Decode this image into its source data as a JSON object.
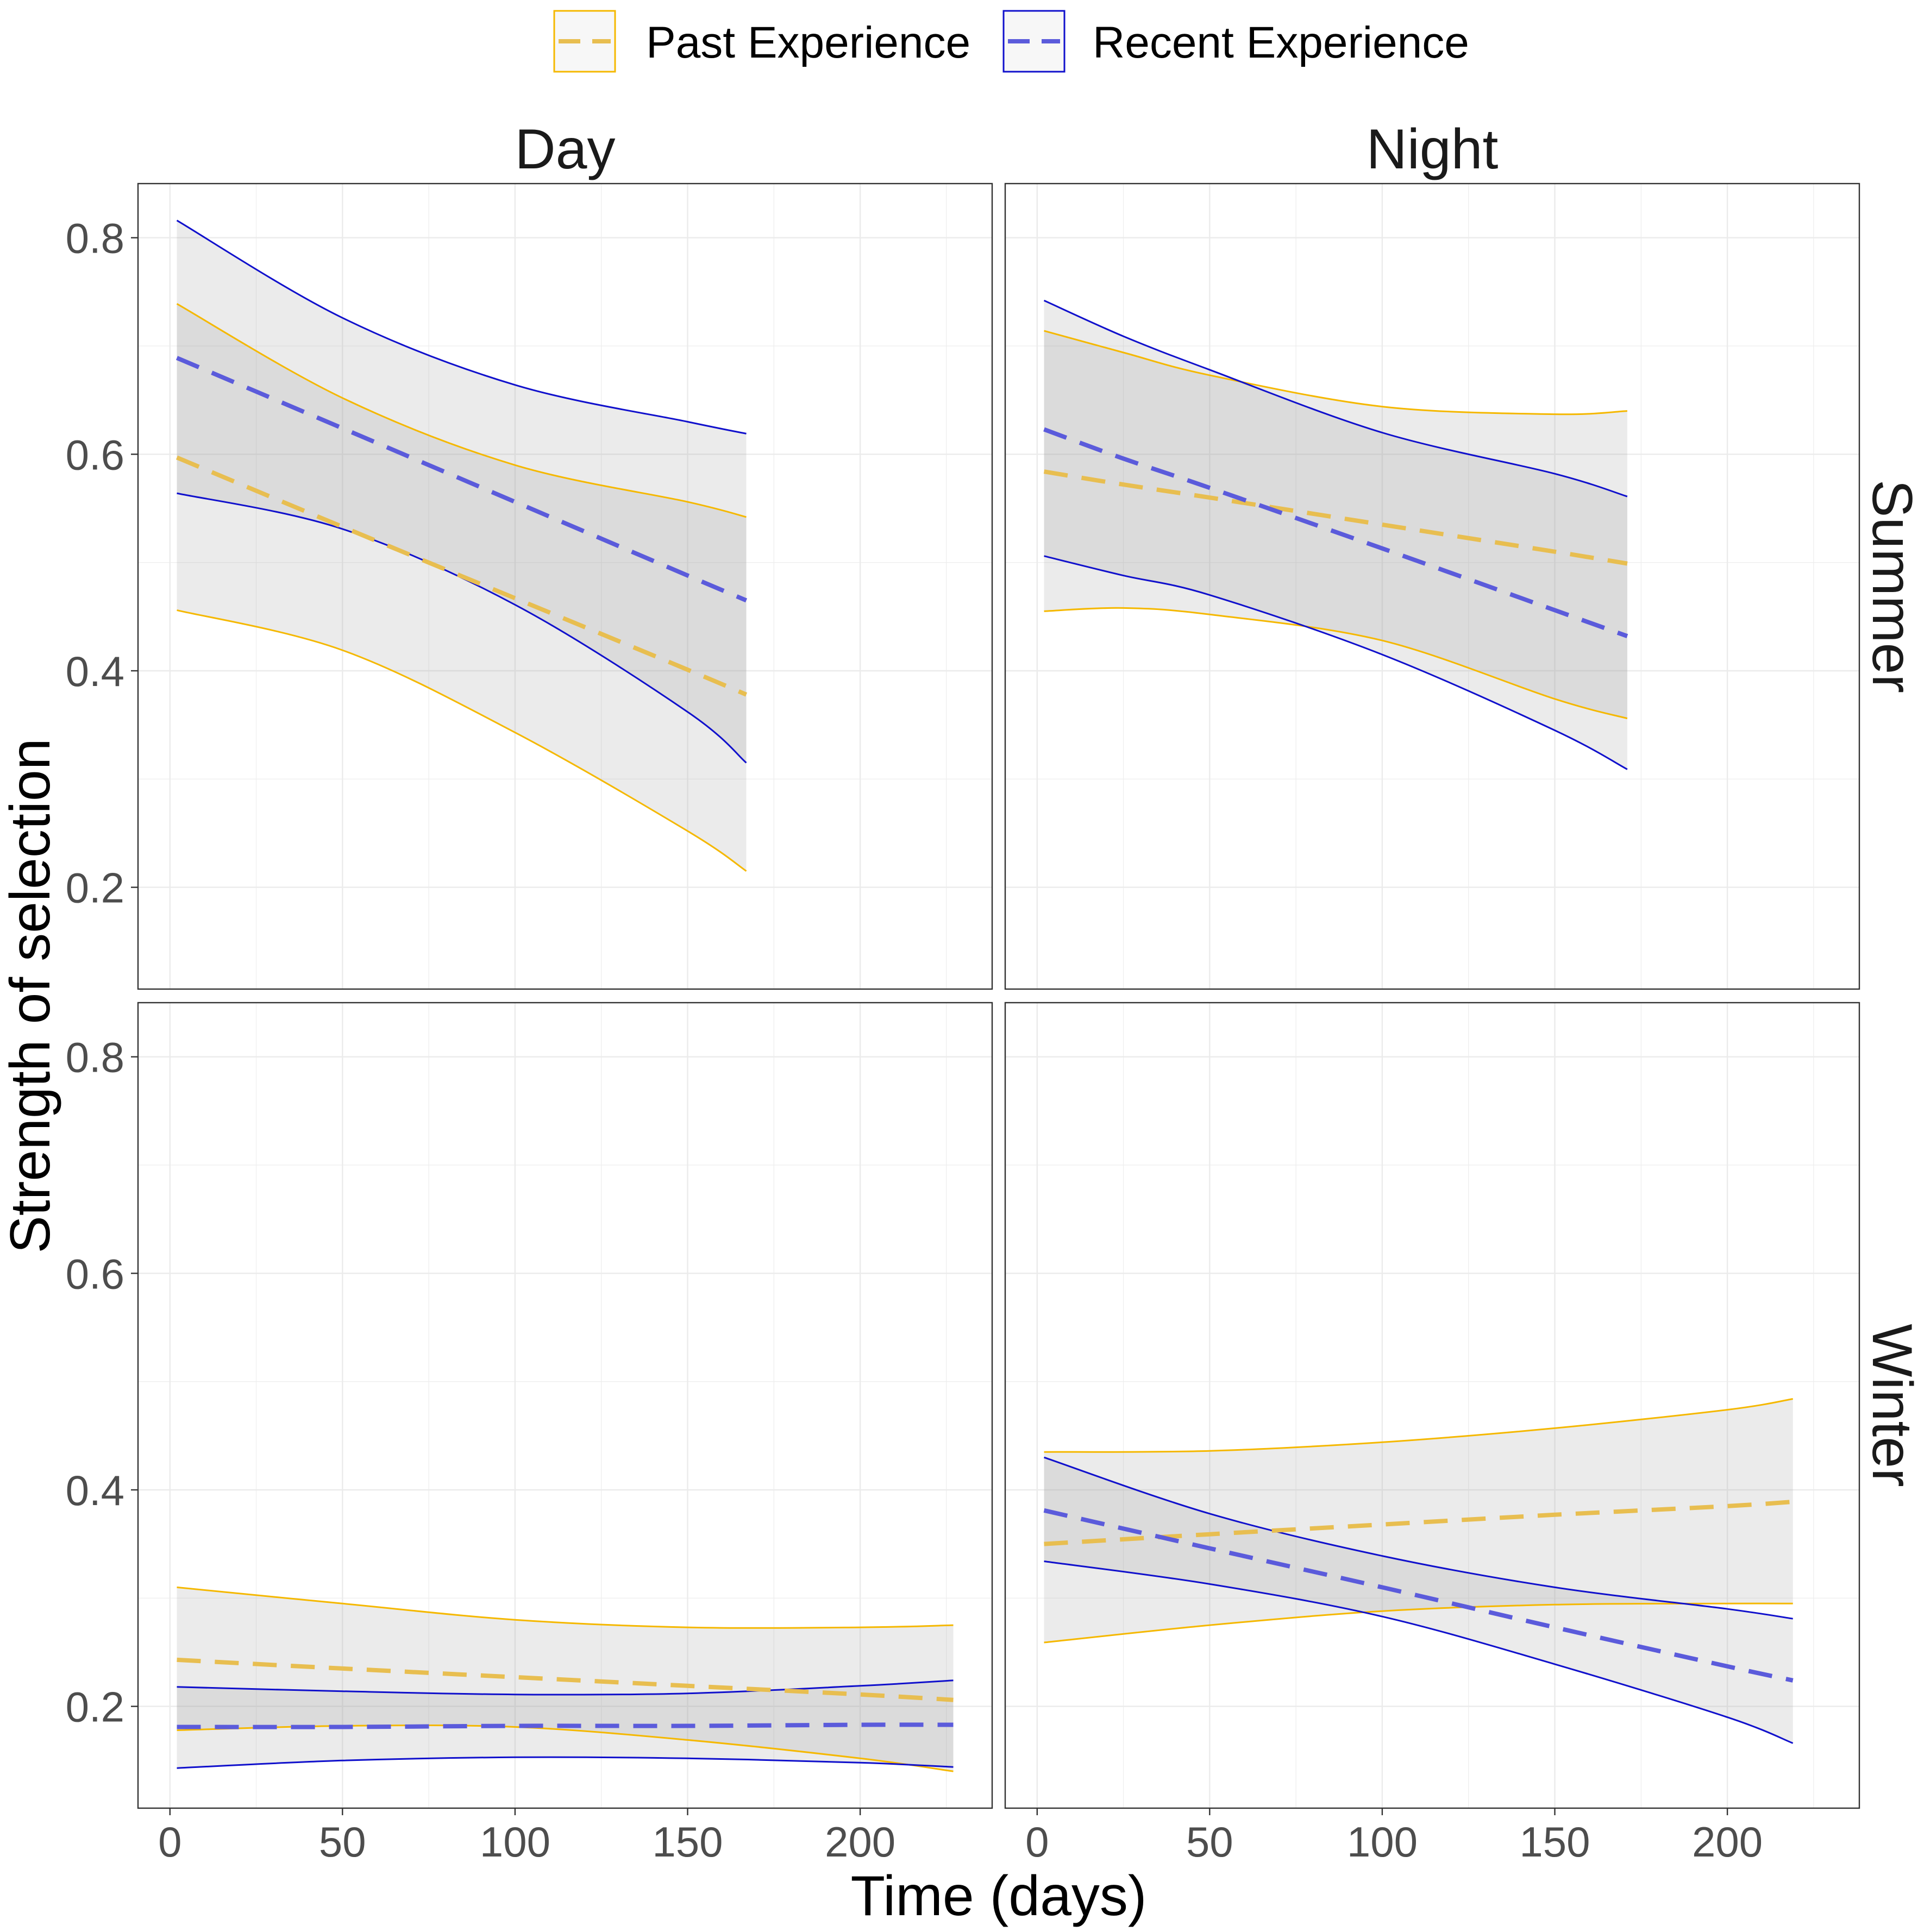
{
  "chart_data": {
    "type": "line",
    "title": "",
    "xlabel": "Time (days)",
    "ylabel": "Strength of selection",
    "xlim": [
      -9.25,
      238.25
    ],
    "ylim": [
      0.106,
      0.85
    ],
    "x_ticks": [
      0,
      50,
      100,
      150,
      200
    ],
    "x_tick_labels": [
      "0",
      "50",
      "100",
      "150",
      "200"
    ],
    "x_minor_ticks": [
      25,
      75,
      125,
      175,
      225
    ],
    "y_ticks": [
      0.2,
      0.4,
      0.6,
      0.8
    ],
    "y_tick_labels": [
      "0.2",
      "0.4",
      "0.6",
      "0.8"
    ],
    "y_minor_ticks": [
      0.3,
      0.5,
      0.7
    ],
    "grid": true,
    "legend_position": "top",
    "series": [
      {
        "name": "Past Experience",
        "color": "#F5B800",
        "estimate_color": "#E8BE50",
        "ribbon_color": "#999999"
      },
      {
        "name": "Recent Experience",
        "color": "#1010CC",
        "estimate_color": "#5B5BDB",
        "ribbon_color": "#999999"
      }
    ],
    "facets": {
      "columns": [
        "Day",
        "Night"
      ],
      "rows": [
        "Summer",
        "Winter"
      ]
    },
    "panels": [
      [
        {
          "x": [
            2,
            50,
            100,
            150,
            167
          ],
          "series_data": [
            {
              "y": [
                0.597,
                0.533,
                0.467,
                0.401,
                0.378
              ],
              "lower": [
                0.456,
                0.419,
                0.343,
                0.252,
                0.215
              ],
              "upper": [
                0.739,
                0.652,
                0.59,
                0.556,
                0.542
              ]
            },
            {
              "y": [
                0.689,
                0.624,
                0.556,
                0.488,
                0.465
              ],
              "lower": [
                0.564,
                0.531,
                0.461,
                0.362,
                0.315
              ],
              "upper": [
                0.816,
                0.726,
                0.664,
                0.63,
                0.619
              ]
            }
          ]
        },
        {
          "x": [
            2,
            25,
            50,
            100,
            150,
            171
          ],
          "series_data": [
            {
              "y": [
                0.584,
                0.572,
                0.56,
                0.535,
                0.51,
                0.499
              ],
              "lower": [
                0.455,
                0.458,
                0.452,
                0.428,
                0.374,
                0.356
              ],
              "upper": [
                0.714,
                0.694,
                0.673,
                0.644,
                0.637,
                0.64
              ]
            },
            {
              "y": [
                0.623,
                0.596,
                0.569,
                0.513,
                0.456,
                0.432
              ],
              "lower": [
                0.506,
                0.488,
                0.47,
                0.415,
                0.345,
                0.309
              ],
              "upper": [
                0.742,
                0.709,
                0.678,
                0.62,
                0.582,
                0.561
              ]
            }
          ]
        }
      ],
      [
        {
          "x": [
            2,
            50,
            100,
            150,
            200,
            227
          ],
          "series_data": [
            {
              "y": [
                0.243,
                0.235,
                0.227,
                0.219,
                0.211,
                0.206
              ],
              "lower": [
                0.178,
                0.182,
                0.181,
                0.169,
                0.152,
                0.14
              ],
              "upper": [
                0.31,
                0.295,
                0.28,
                0.273,
                0.273,
                0.275
              ]
            },
            {
              "y": [
                0.181,
                0.181,
                0.182,
                0.182,
                0.183,
                0.183
              ],
              "lower": [
                0.143,
                0.15,
                0.153,
                0.152,
                0.148,
                0.144
              ],
              "upper": [
                0.218,
                0.214,
                0.211,
                0.212,
                0.219,
                0.224
              ]
            }
          ]
        },
        {
          "x": [
            2,
            50,
            100,
            150,
            200,
            219
          ],
          "series_data": [
            {
              "y": [
                0.35,
                0.359,
                0.368,
                0.377,
                0.385,
                0.389
              ],
              "lower": [
                0.259,
                0.275,
                0.288,
                0.294,
                0.295,
                0.295
              ],
              "upper": [
                0.435,
                0.436,
                0.444,
                0.457,
                0.474,
                0.484
              ]
            },
            {
              "y": [
                0.381,
                0.346,
                0.31,
                0.273,
                0.237,
                0.224
              ],
              "lower": [
                0.334,
                0.313,
                0.283,
                0.239,
                0.19,
                0.166
              ],
              "upper": [
                0.43,
                0.378,
                0.339,
                0.31,
                0.29,
                0.281
              ]
            }
          ]
        }
      ]
    ]
  }
}
